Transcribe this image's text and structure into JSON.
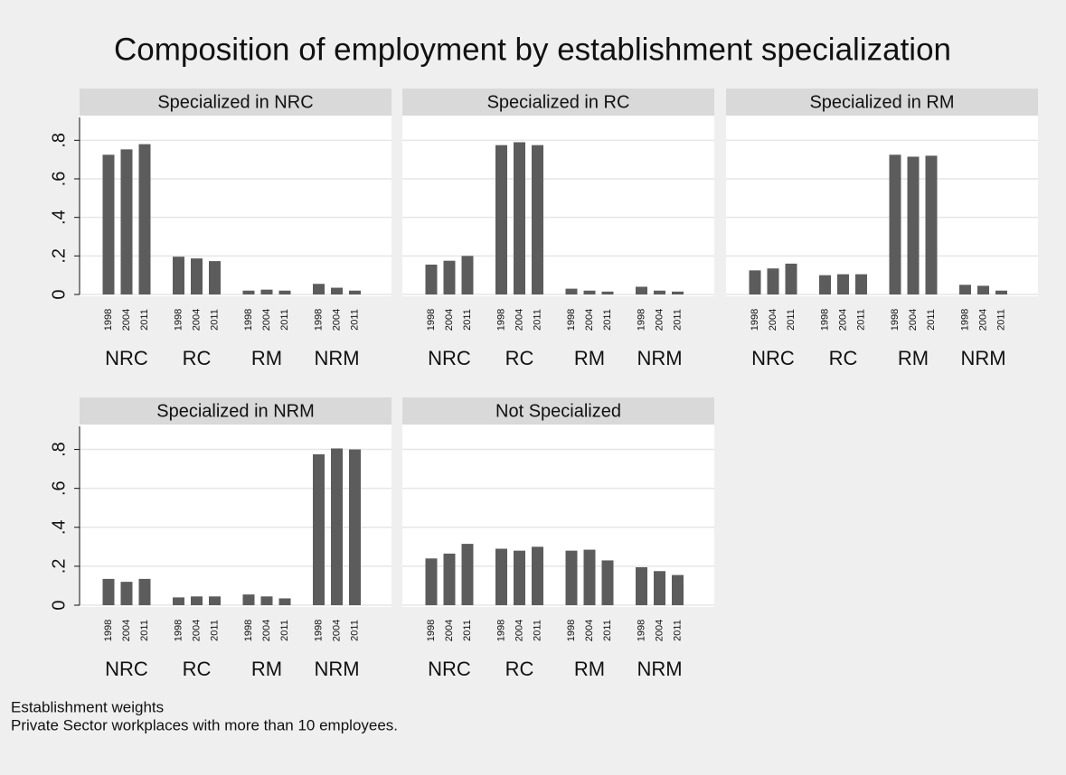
{
  "title": "Composition of employment by establishment specialization",
  "notes": [
    "Establishment weights",
    "Private Sector workplaces with more than 10 employees."
  ],
  "ylim": [
    0,
    0.9
  ],
  "yticks": [
    0,
    {
      "value": 0.2,
      "label": ".2"
    },
    {
      "value": 0.4,
      "label": ".4"
    },
    {
      "value": 0.6,
      "label": ".6"
    },
    {
      "value": 0.8,
      "label": ".8"
    }
  ],
  "grid": true,
  "color": "#5c5c5c",
  "chart_data": [
    {
      "type": "bar",
      "title": "Specialized in NRC",
      "categories": [
        "NRC",
        "RC",
        "RM",
        "NRM"
      ],
      "years": [
        "1998",
        "2004",
        "2011"
      ],
      "values": [
        [
          0.725,
          0.753,
          0.78
        ],
        [
          0.196,
          0.187,
          0.173
        ],
        [
          0.02,
          0.025,
          0.02
        ],
        [
          0.055,
          0.035,
          0.02
        ]
      ]
    },
    {
      "type": "bar",
      "title": "Specialized in RC",
      "categories": [
        "NRC",
        "RC",
        "RM",
        "NRM"
      ],
      "years": [
        "1998",
        "2004",
        "2011"
      ],
      "values": [
        [
          0.155,
          0.175,
          0.2
        ],
        [
          0.775,
          0.79,
          0.775
        ],
        [
          0.03,
          0.02,
          0.015
        ],
        [
          0.04,
          0.02,
          0.015
        ]
      ]
    },
    {
      "type": "bar",
      "title": "Specialized in RM",
      "categories": [
        "NRC",
        "RC",
        "RM",
        "NRM"
      ],
      "years": [
        "1998",
        "2004",
        "2011"
      ],
      "values": [
        [
          0.125,
          0.135,
          0.16
        ],
        [
          0.1,
          0.105,
          0.105
        ],
        [
          0.725,
          0.715,
          0.72
        ],
        [
          0.05,
          0.045,
          0.02
        ]
      ]
    },
    {
      "type": "bar",
      "title": "Specialized in NRM",
      "categories": [
        "NRC",
        "RC",
        "RM",
        "NRM"
      ],
      "years": [
        "1998",
        "2004",
        "2011"
      ],
      "values": [
        [
          0.135,
          0.12,
          0.135
        ],
        [
          0.04,
          0.045,
          0.045
        ],
        [
          0.055,
          0.045,
          0.035
        ],
        [
          0.775,
          0.805,
          0.8
        ]
      ]
    },
    {
      "type": "bar",
      "title": "Not Specialized",
      "categories": [
        "NRC",
        "RC",
        "RM",
        "NRM"
      ],
      "years": [
        "1998",
        "2004",
        "2011"
      ],
      "values": [
        [
          0.24,
          0.265,
          0.315
        ],
        [
          0.29,
          0.28,
          0.3
        ],
        [
          0.28,
          0.285,
          0.23
        ],
        [
          0.195,
          0.175,
          0.155
        ]
      ]
    }
  ]
}
